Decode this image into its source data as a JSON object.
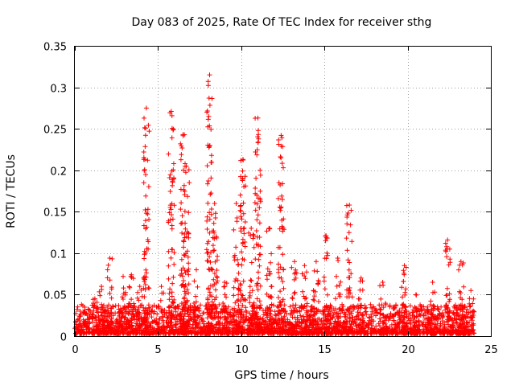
{
  "chart_data": {
    "type": "scatter",
    "title": "Day 083 of 2025, Rate Of TEC Index for receiver sthg",
    "xlabel": "GPS time / hours",
    "ylabel": "ROTI / TECUs",
    "xlim": [
      0,
      25
    ],
    "ylim": [
      0,
      0.35
    ],
    "x_ticks": [
      0,
      5,
      10,
      15,
      20,
      25
    ],
    "x_tick_labels": [
      "0",
      "5",
      "10",
      "15",
      "20",
      "25"
    ],
    "y_ticks": [
      0,
      0.05,
      0.1,
      0.15,
      0.2,
      0.25,
      0.3,
      0.35
    ],
    "y_tick_labels": [
      "0",
      "0.05",
      "0.1",
      "0.15",
      "0.2",
      "0.25",
      "0.3",
      "0.35"
    ],
    "grid": true,
    "marker": "+",
    "marker_color": "#ff0000",
    "series": [
      {
        "name": "ROTI",
        "background_band": {
          "x_range": [
            0,
            24
          ],
          "y_floor": 0.003,
          "y_typical_max": 0.035
        },
        "spikes": [
          {
            "x": 0.4,
            "y_max": 0.038
          },
          {
            "x": 1.2,
            "y_max": 0.045
          },
          {
            "x": 1.6,
            "y_max": 0.06
          },
          {
            "x": 2.1,
            "y_max": 0.094
          },
          {
            "x": 2.9,
            "y_max": 0.072
          },
          {
            "x": 3.4,
            "y_max": 0.074
          },
          {
            "x": 3.9,
            "y_max": 0.06
          },
          {
            "x": 4.3,
            "y_max": 0.275
          },
          {
            "x": 5.2,
            "y_max": 0.06
          },
          {
            "x": 5.8,
            "y_max": 0.271
          },
          {
            "x": 6.5,
            "y_max": 0.243
          },
          {
            "x": 6.7,
            "y_max": 0.205
          },
          {
            "x": 7.3,
            "y_max": 0.08
          },
          {
            "x": 8.1,
            "y_max": 0.315
          },
          {
            "x": 8.4,
            "y_max": 0.16
          },
          {
            "x": 9.0,
            "y_max": 0.065
          },
          {
            "x": 9.7,
            "y_max": 0.16
          },
          {
            "x": 10.1,
            "y_max": 0.213
          },
          {
            "x": 10.6,
            "y_max": 0.13
          },
          {
            "x": 11.0,
            "y_max": 0.263
          },
          {
            "x": 11.7,
            "y_max": 0.13
          },
          {
            "x": 12.4,
            "y_max": 0.242
          },
          {
            "x": 13.2,
            "y_max": 0.09
          },
          {
            "x": 13.8,
            "y_max": 0.085
          },
          {
            "x": 14.5,
            "y_max": 0.09
          },
          {
            "x": 15.1,
            "y_max": 0.121
          },
          {
            "x": 15.8,
            "y_max": 0.094
          },
          {
            "x": 16.5,
            "y_max": 0.158
          },
          {
            "x": 17.2,
            "y_max": 0.07
          },
          {
            "x": 18.5,
            "y_max": 0.065
          },
          {
            "x": 19.8,
            "y_max": 0.085
          },
          {
            "x": 20.5,
            "y_max": 0.05
          },
          {
            "x": 21.5,
            "y_max": 0.065
          },
          {
            "x": 22.4,
            "y_max": 0.116
          },
          {
            "x": 23.2,
            "y_max": 0.09
          },
          {
            "x": 23.8,
            "y_max": 0.055
          }
        ]
      }
    ]
  }
}
